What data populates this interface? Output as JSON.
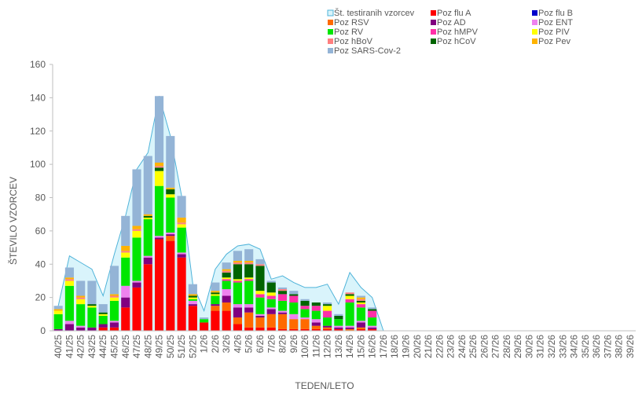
{
  "chart_data": {
    "type": "bar",
    "stacked": true,
    "xlabel": "TEDEN/LETO",
    "ylabel": "ŠTEVILO VZORCEV",
    "ylim": [
      0,
      160
    ],
    "yticks": [
      0,
      20,
      40,
      60,
      80,
      100,
      120,
      140,
      160
    ],
    "grid": false,
    "legend_position": "top-right",
    "categories": [
      "40/25",
      "41/25",
      "42/25",
      "43/25",
      "44/25",
      "45/25",
      "46/25",
      "47/25",
      "48/25",
      "49/25",
      "50/25",
      "51/25",
      "52/25",
      "1/26",
      "2/26",
      "3/26",
      "4/26",
      "5/26",
      "6/26",
      "7/26",
      "8/26",
      "9/26",
      "10/26",
      "11/26",
      "12/26",
      "13/26",
      "14/26",
      "15/26",
      "16/26",
      "17/26",
      "18/26",
      "19/26",
      "20/26",
      "21/26",
      "22/26",
      "23/26",
      "24/26",
      "25/26",
      "26/26",
      "27/26",
      "28/26",
      "29/26",
      "30/26",
      "31/26",
      "32/26",
      "33/26",
      "34/26",
      "35/26",
      "36/26",
      "37/26",
      "38/26",
      "39/26"
    ],
    "area_series": {
      "name": "Št. testiranih vzorcev",
      "color": "#d9f4fb",
      "line_color": "#4fb3d9",
      "values": [
        15,
        45,
        41,
        37,
        21,
        46,
        69,
        97,
        107,
        141,
        117,
        81,
        28,
        12,
        37,
        46,
        51,
        52,
        49,
        31,
        33,
        29,
        26,
        26,
        28,
        16,
        35,
        26,
        20,
        0,
        null,
        null,
        null,
        null,
        null,
        null,
        null,
        null,
        null,
        null,
        null,
        null,
        null,
        null,
        null,
        null,
        null,
        null,
        null,
        null,
        null,
        null
      ]
    },
    "series": [
      {
        "name": "Poz flu A",
        "color": "#ff0000",
        "values": [
          0,
          0,
          0,
          0,
          2,
          2,
          14,
          26,
          40,
          55,
          54,
          44,
          15,
          5,
          12,
          12,
          4,
          2,
          2,
          2,
          1,
          1,
          1,
          1,
          1,
          1,
          0,
          1,
          1,
          0,
          null,
          null,
          null,
          null,
          null,
          null,
          null,
          null,
          null,
          null,
          null,
          null,
          null,
          null,
          null,
          null,
          null,
          null,
          null,
          null,
          null,
          null
        ]
      },
      {
        "name": "Poz flu B",
        "color": "#0000cc",
        "values": [
          0,
          0,
          0,
          0,
          0,
          0,
          0,
          0,
          0,
          0,
          0,
          0,
          0,
          0,
          0,
          0,
          0,
          0,
          0,
          0,
          0,
          0,
          0,
          0,
          0,
          0,
          0,
          0,
          0,
          0,
          null,
          null,
          null,
          null,
          null,
          null,
          null,
          null,
          null,
          null,
          null,
          null,
          null,
          null,
          null,
          null,
          null,
          null,
          null,
          null,
          null,
          null
        ]
      },
      {
        "name": "Poz RSV",
        "color": "#ff6a00",
        "values": [
          0,
          0,
          0,
          0,
          0,
          0,
          0,
          0,
          0,
          0,
          3,
          0,
          0,
          0,
          3,
          5,
          4,
          9,
          6,
          8,
          9,
          6,
          6,
          2,
          1,
          0,
          1,
          1,
          0,
          0,
          null,
          null,
          null,
          null,
          null,
          null,
          null,
          null,
          null,
          null,
          null,
          null,
          null,
          null,
          null,
          null,
          null,
          null,
          null,
          null,
          null,
          null
        ]
      },
      {
        "name": "Poz AD",
        "color": "#800080",
        "values": [
          1,
          4,
          2,
          2,
          2,
          3,
          6,
          3,
          4,
          1,
          1,
          2,
          1,
          0,
          1,
          4,
          6,
          3,
          1,
          3,
          1,
          0,
          0,
          2,
          1,
          1,
          1,
          3,
          1,
          0,
          null,
          null,
          null,
          null,
          null,
          null,
          null,
          null,
          null,
          null,
          null,
          null,
          null,
          null,
          null,
          null,
          null,
          null,
          null,
          null,
          null,
          null
        ]
      },
      {
        "name": "Poz ENT",
        "color": "#ee82ee",
        "values": [
          0,
          2,
          1,
          0,
          0,
          1,
          7,
          1,
          1,
          1,
          1,
          1,
          2,
          0,
          0,
          4,
          2,
          2,
          1,
          1,
          1,
          3,
          1,
          2,
          0,
          1,
          1,
          1,
          1,
          0,
          null,
          null,
          null,
          null,
          null,
          null,
          null,
          null,
          null,
          null,
          null,
          null,
          null,
          null,
          null,
          null,
          null,
          null,
          null,
          null,
          null,
          null
        ]
      },
      {
        "name": "Poz RV",
        "color": "#00e600",
        "values": [
          9,
          21,
          13,
          12,
          5,
          12,
          17,
          26,
          22,
          30,
          21,
          15,
          1,
          2,
          5,
          5,
          13,
          14,
          10,
          5,
          6,
          7,
          5,
          5,
          5,
          4,
          14,
          8,
          5,
          0,
          null,
          null,
          null,
          null,
          null,
          null,
          null,
          null,
          null,
          null,
          null,
          null,
          null,
          null,
          null,
          null,
          null,
          null,
          null,
          null,
          null,
          null
        ]
      },
      {
        "name": "Poz hMPV",
        "color": "#ff2fa8",
        "values": [
          0,
          0,
          0,
          0,
          0,
          0,
          0,
          0,
          0,
          0,
          0,
          0,
          0,
          0,
          0,
          1,
          1,
          1,
          2,
          2,
          4,
          4,
          2,
          3,
          4,
          0,
          2,
          2,
          4,
          0,
          null,
          null,
          null,
          null,
          null,
          null,
          null,
          null,
          null,
          null,
          null,
          null,
          null,
          null,
          null,
          null,
          null,
          null,
          null,
          null,
          null,
          null
        ]
      },
      {
        "name": "Poz PIV",
        "color": "#ffff00",
        "values": [
          2,
          3,
          3,
          1,
          1,
          2,
          3,
          4,
          1,
          9,
          2,
          2,
          1,
          0,
          1,
          1,
          1,
          1,
          2,
          2,
          0,
          0,
          0,
          0,
          3,
          0,
          2,
          1,
          0,
          0,
          null,
          null,
          null,
          null,
          null,
          null,
          null,
          null,
          null,
          null,
          null,
          null,
          null,
          null,
          null,
          null,
          null,
          null,
          null,
          null,
          null,
          null
        ]
      },
      {
        "name": "Poz hCoV",
        "color": "#006400",
        "values": [
          0,
          0,
          0,
          1,
          1,
          0,
          0,
          0,
          1,
          2,
          3,
          0,
          1,
          0,
          1,
          3,
          9,
          8,
          15,
          6,
          2,
          1,
          3,
          2,
          1,
          2,
          1,
          1,
          1,
          0,
          null,
          null,
          null,
          null,
          null,
          null,
          null,
          null,
          null,
          null,
          null,
          null,
          null,
          null,
          null,
          null,
          null,
          null,
          null,
          null,
          null,
          null
        ]
      },
      {
        "name": "Poz hBoV",
        "color": "#ff7f7f",
        "values": [
          0,
          1,
          1,
          0,
          0,
          1,
          1,
          1,
          0,
          1,
          0,
          1,
          0,
          0,
          0,
          1,
          1,
          1,
          1,
          0,
          1,
          0,
          0,
          0,
          0,
          0,
          1,
          1,
          0,
          0,
          null,
          null,
          null,
          null,
          null,
          null,
          null,
          null,
          null,
          null,
          null,
          null,
          null,
          null,
          null,
          null,
          null,
          null,
          null,
          null,
          null,
          null
        ]
      },
      {
        "name": "Poz Pev",
        "color": "#ffb300",
        "values": [
          1,
          1,
          1,
          0,
          0,
          1,
          3,
          2,
          1,
          2,
          1,
          3,
          1,
          0,
          1,
          1,
          1,
          1,
          0,
          0,
          0,
          0,
          0,
          0,
          0,
          0,
          0,
          1,
          0,
          0,
          null,
          null,
          null,
          null,
          null,
          null,
          null,
          null,
          null,
          null,
          null,
          null,
          null,
          null,
          null,
          null,
          null,
          null,
          null,
          null,
          null,
          null
        ]
      },
      {
        "name": "Poz SARS-Cov-2",
        "color": "#94b4d6",
        "values": [
          2,
          6,
          9,
          14,
          5,
          17,
          18,
          34,
          35,
          40,
          31,
          13,
          6,
          1,
          5,
          4,
          6,
          7,
          3,
          1,
          1,
          2,
          1,
          0,
          1,
          1,
          0,
          1,
          1,
          0,
          null,
          null,
          null,
          null,
          null,
          null,
          null,
          null,
          null,
          null,
          null,
          null,
          null,
          null,
          null,
          null,
          null,
          null,
          null,
          null,
          null,
          null
        ]
      }
    ],
    "legend_order": [
      "Št. testiranih vzorcev",
      "Poz flu A",
      "Poz flu B",
      "Poz RSV",
      "Poz AD",
      "Poz ENT",
      "Poz RV",
      "Poz hMPV",
      "Poz PIV",
      "Poz hBoV",
      "Poz hCoV",
      "Poz Pev",
      "Poz SARS-Cov-2"
    ]
  }
}
